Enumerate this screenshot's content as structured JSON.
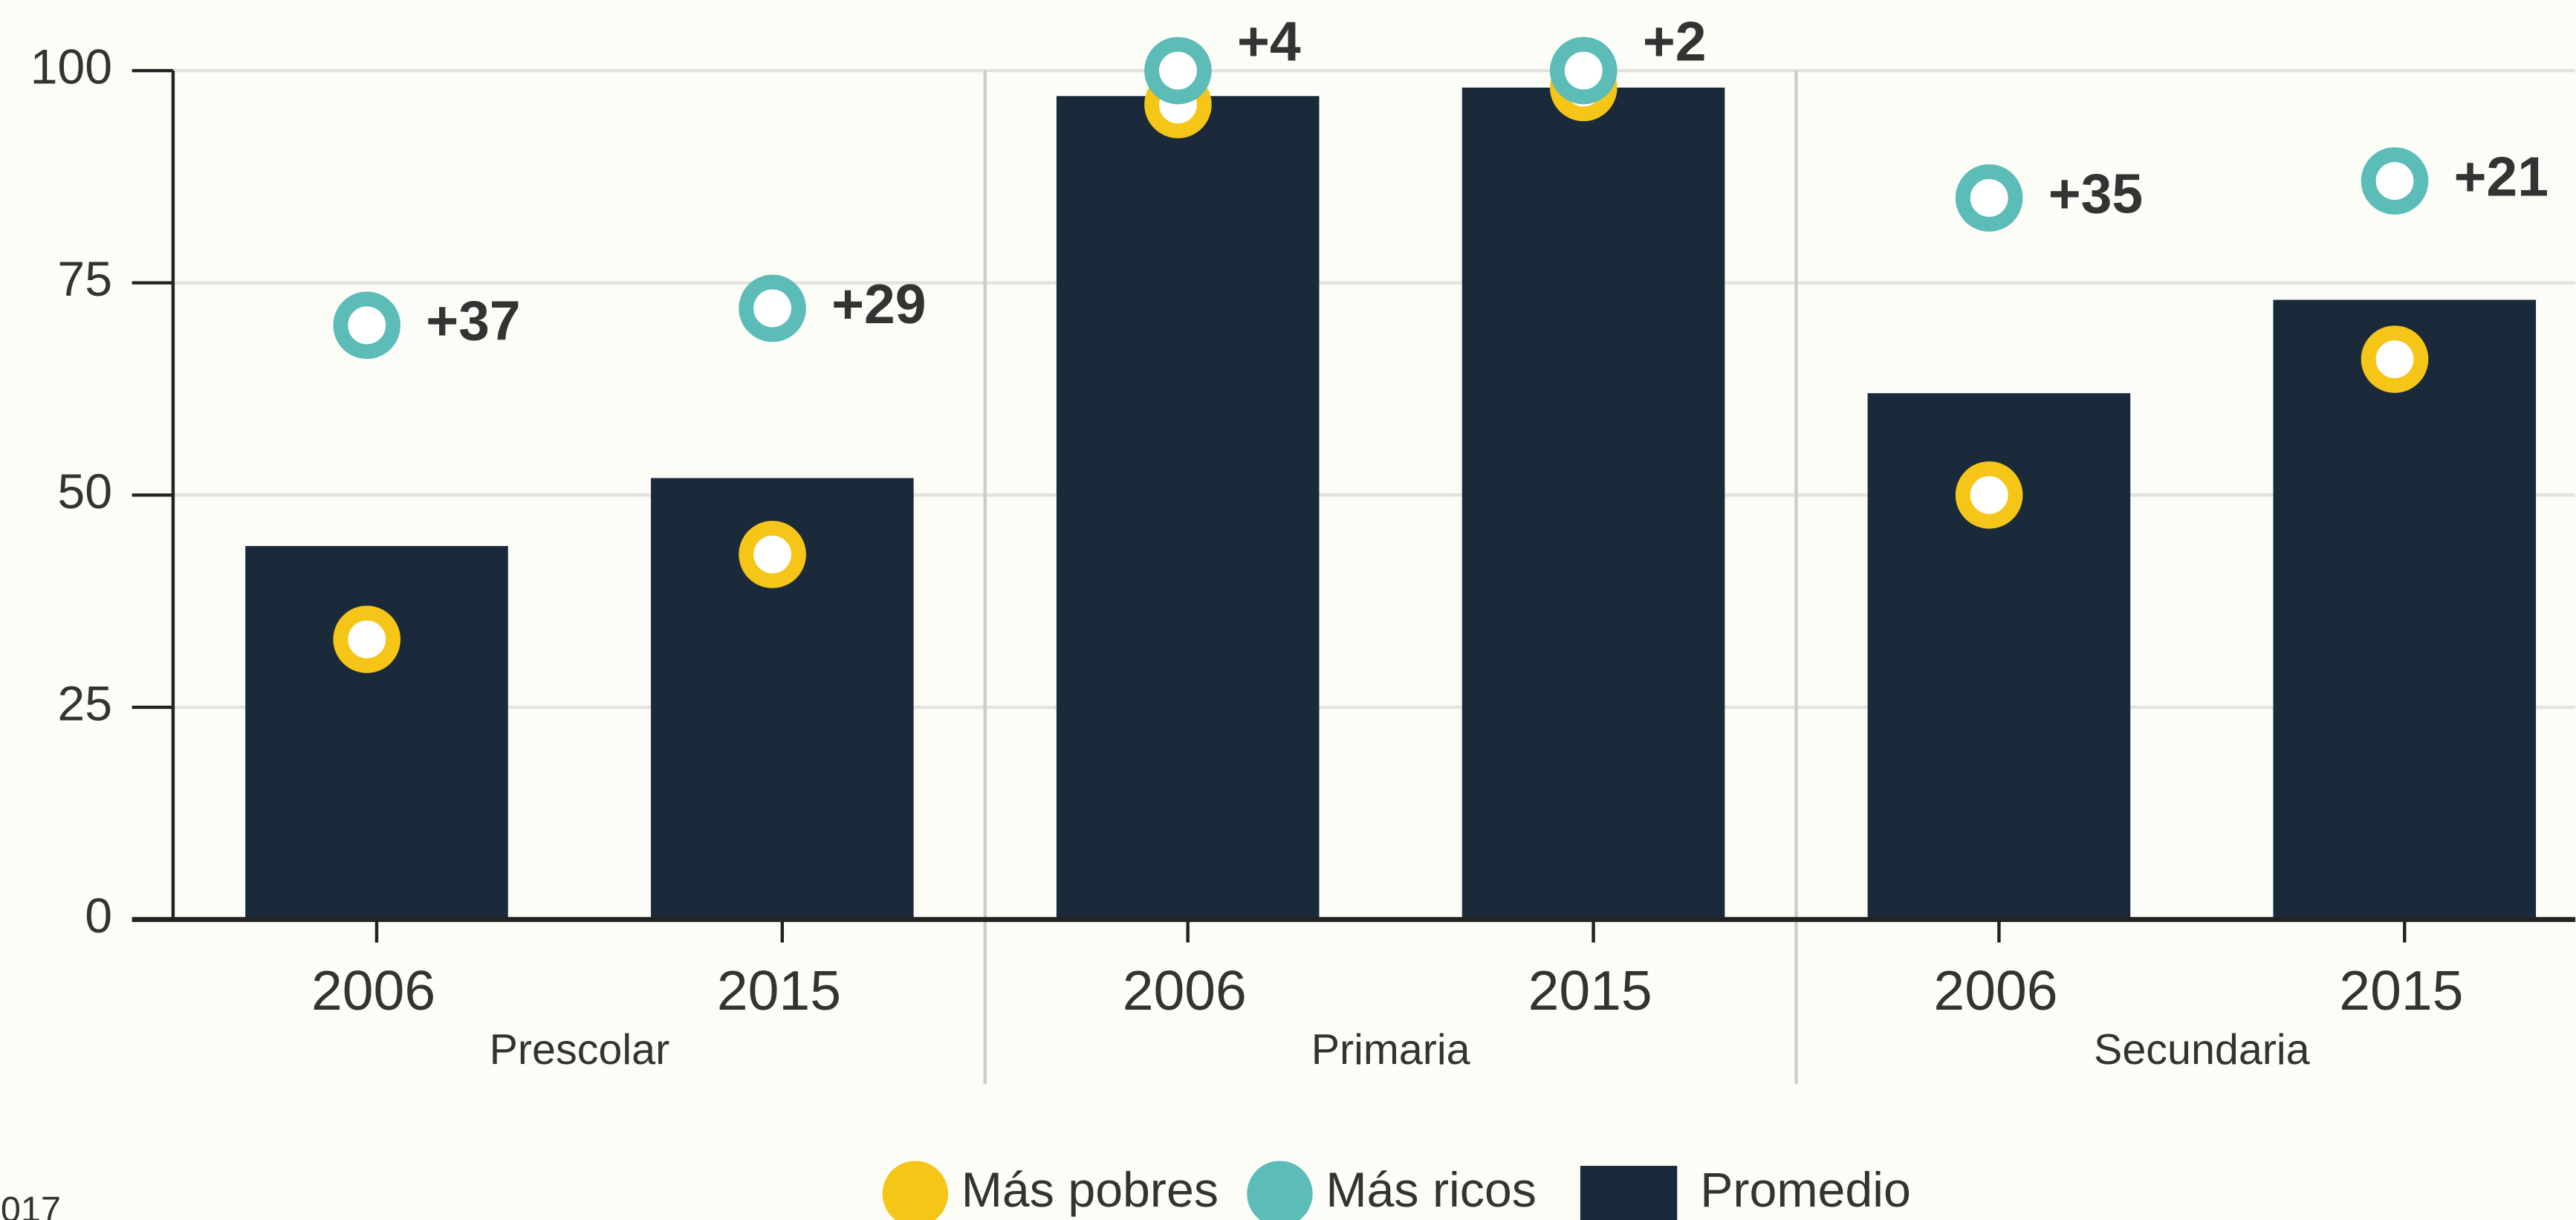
{
  "chart_data": {
    "type": "bar",
    "groups": [
      "Prescolar",
      "Primaria",
      "Secundaria"
    ],
    "categories": [
      "2006",
      "2015",
      "2006",
      "2015",
      "2006",
      "2015"
    ],
    "series": [
      {
        "name": "Más pobres",
        "color": "#f5c518",
        "type": "scatter",
        "values": [
          33,
          43,
          96,
          98,
          50,
          66
        ]
      },
      {
        "name": "Más ricos",
        "color": "#5bbcb8",
        "type": "scatter",
        "values": [
          70,
          72,
          100,
          100,
          85,
          87
        ]
      },
      {
        "name": "Promedio",
        "color": "#1a2a3a",
        "type": "bar",
        "values": [
          44,
          52,
          97,
          98,
          62,
          73
        ]
      }
    ],
    "annotations": [
      "+37",
      "+29",
      "+4",
      "+2",
      "+35",
      "+21"
    ],
    "ylim": [
      0,
      100
    ],
    "yticks": [
      0,
      25,
      50,
      75,
      100
    ],
    "grid": true,
    "note": "017"
  }
}
